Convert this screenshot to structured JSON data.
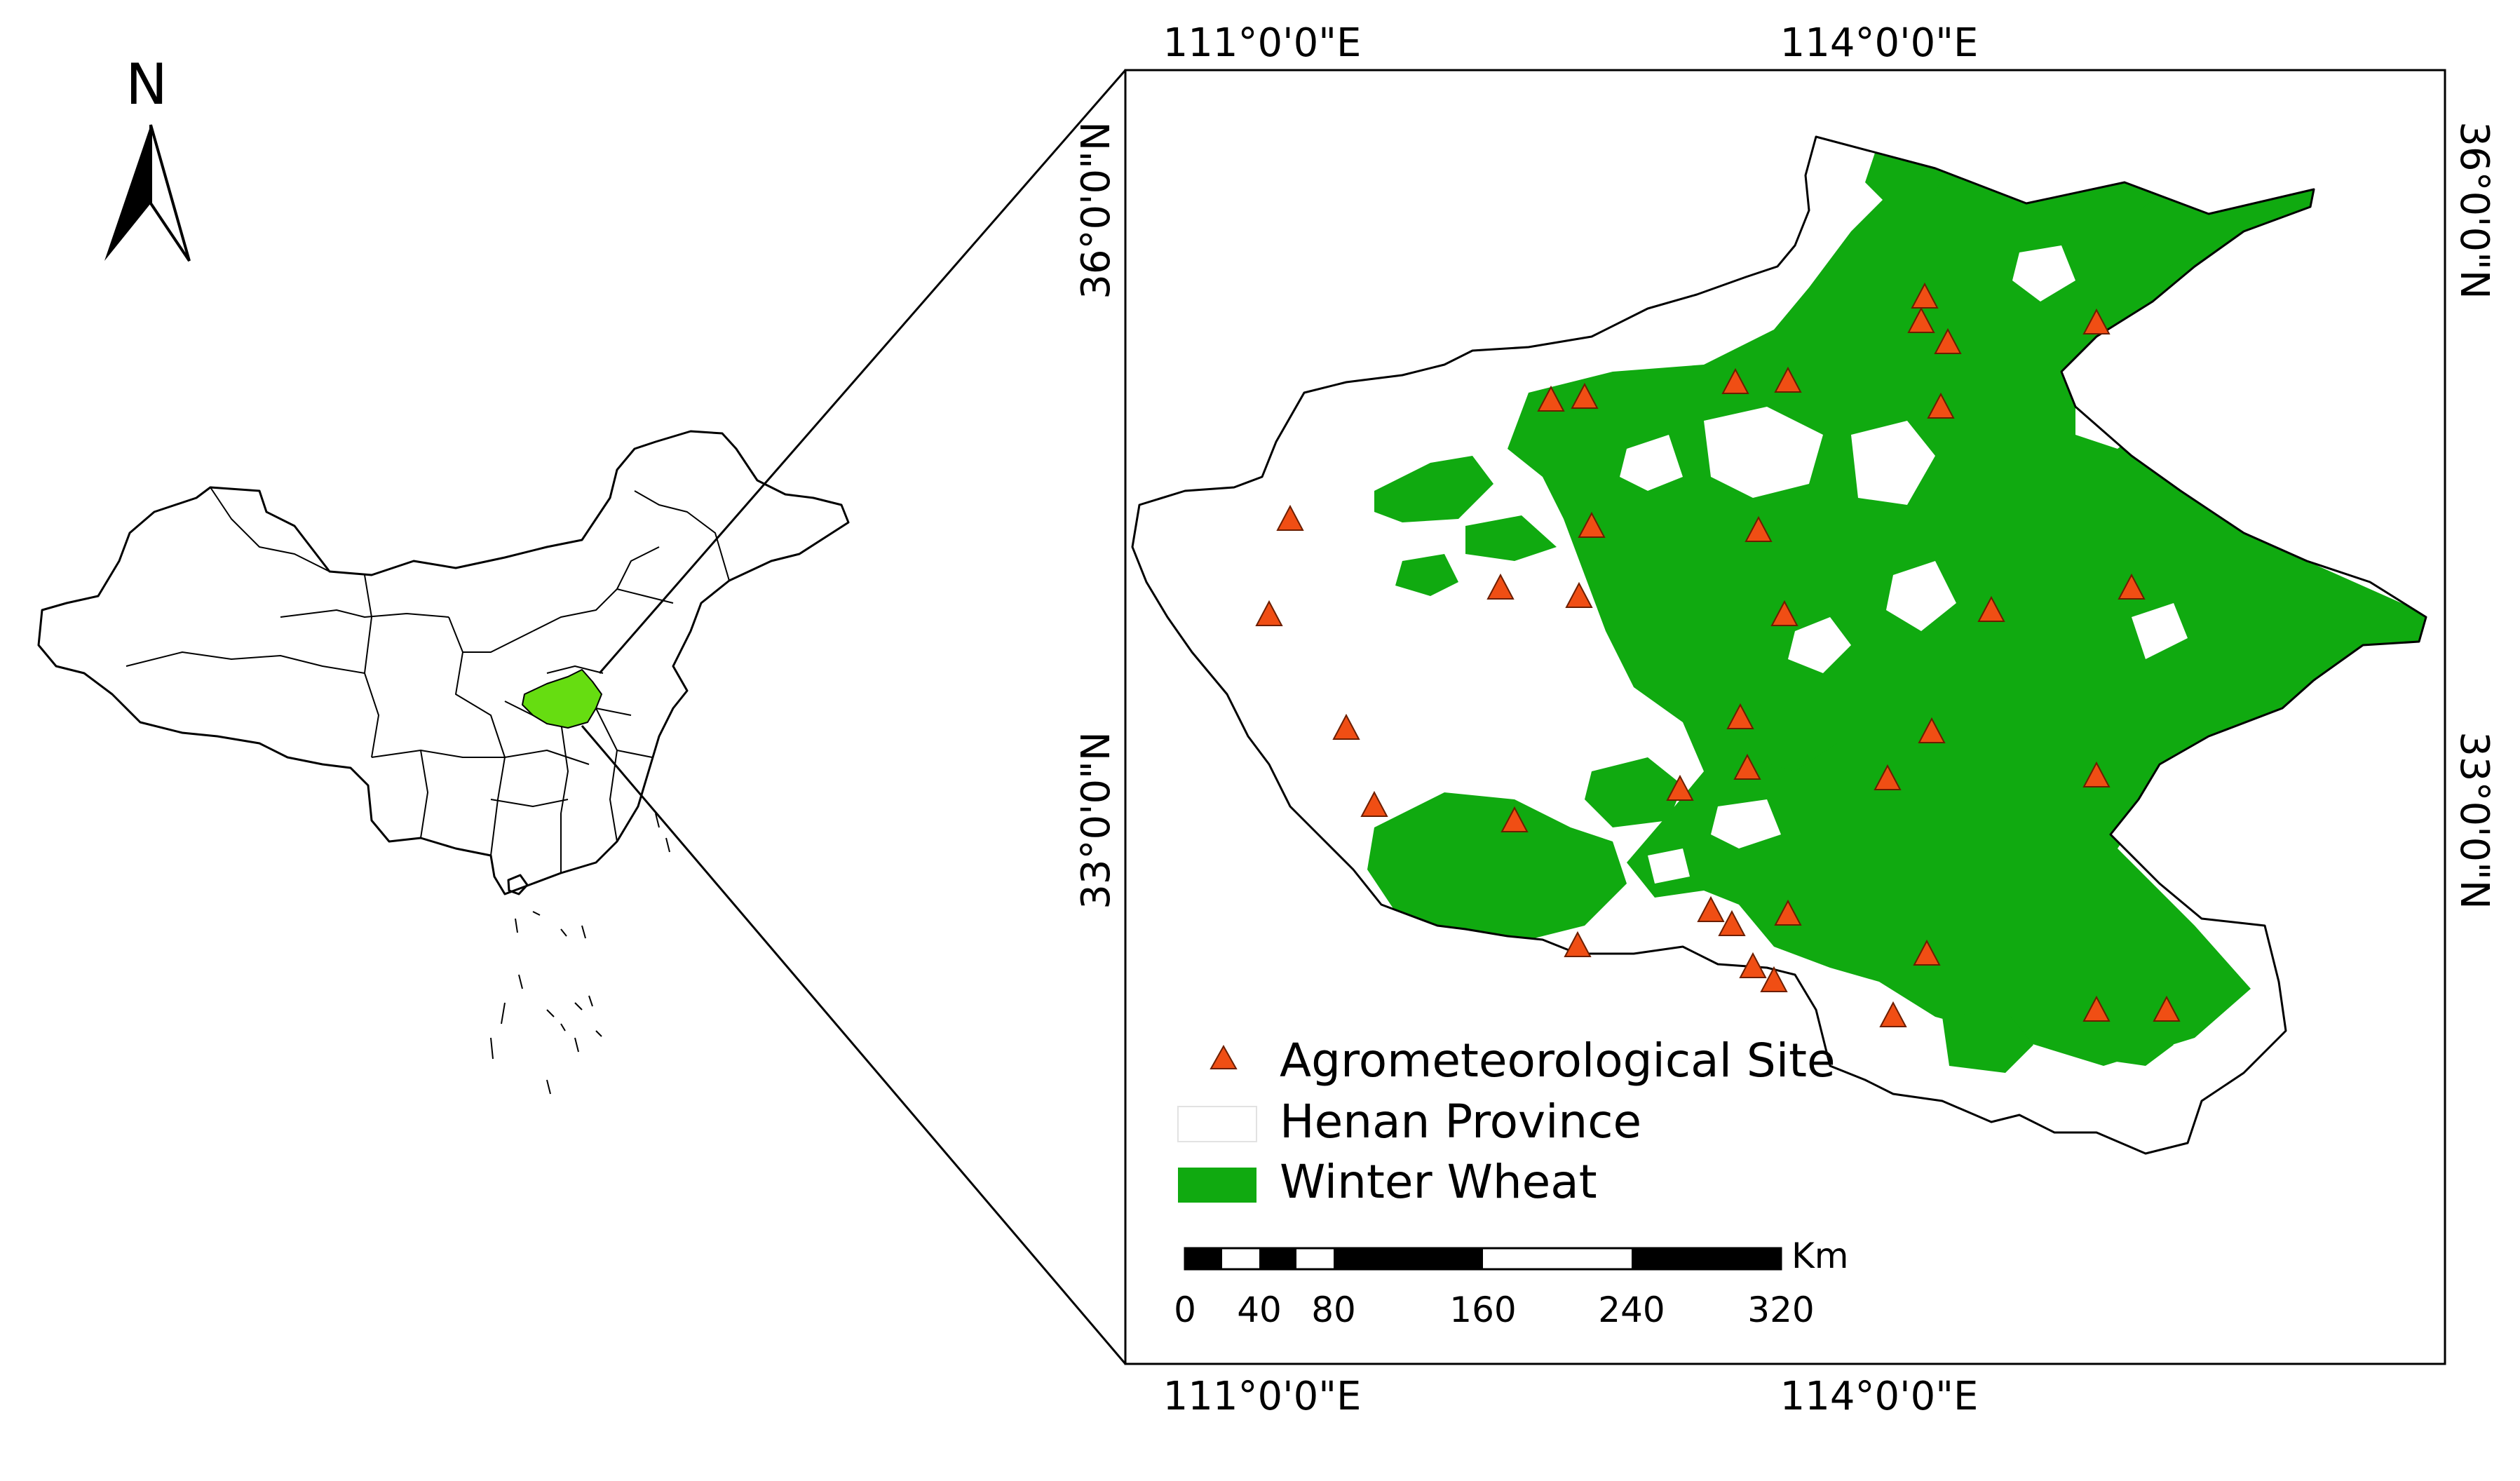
{
  "north_arrow": {
    "label": "N"
  },
  "coordinates": {
    "top_lon": [
      "111°0'0\"E",
      "114°0'0\"E"
    ],
    "bottom_lon": [
      "111°0'0\"E",
      "114°0'0\"E"
    ],
    "left_lat": [
      "36°0'0\"N",
      "33°0'0\"N"
    ],
    "right_lat": [
      "36°0'0\"N",
      "33°0'0\"N"
    ]
  },
  "legend": {
    "site": "Agrometeorological Site",
    "province": "Henan Province",
    "wheat": "Winter Wheat"
  },
  "scale_bar": {
    "unit": "Km",
    "ticks": [
      "0",
      "40",
      "80",
      "160",
      "240",
      "320"
    ]
  },
  "colors": {
    "wheat": "#10aa10",
    "highlight": "#66dd11",
    "site_fill": "#f04e14",
    "site_stroke": "#6b1e00"
  },
  "icons": {
    "site": "triangle-site-icon",
    "north": "north-arrow-icon"
  },
  "sites_count": 37
}
